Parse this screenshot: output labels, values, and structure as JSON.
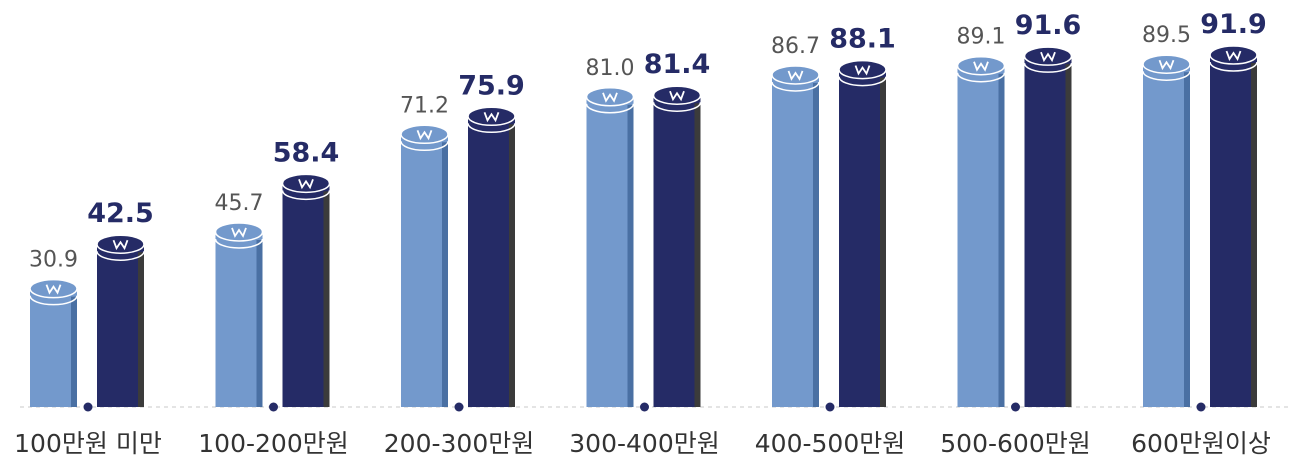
{
  "chart_data": {
    "type": "bar",
    "categories": [
      "100만원 미만",
      "100-200만원",
      "200-300만원",
      "300-400만원",
      "400-500만원",
      "500-600만원",
      "600만원이상"
    ],
    "series": [
      {
        "color": "#7399cc",
        "values": [
          30.9,
          45.7,
          71.2,
          81.0,
          86.7,
          89.1,
          89.5
        ],
        "value_labels": [
          "30.9",
          "45.7",
          "71.2",
          "81.0",
          "86.7",
          "89.1",
          "89.5"
        ]
      },
      {
        "color": "#252b66",
        "values": [
          42.5,
          58.4,
          75.9,
          81.4,
          88.1,
          91.6,
          91.9
        ]
      }
    ]
  }
}
